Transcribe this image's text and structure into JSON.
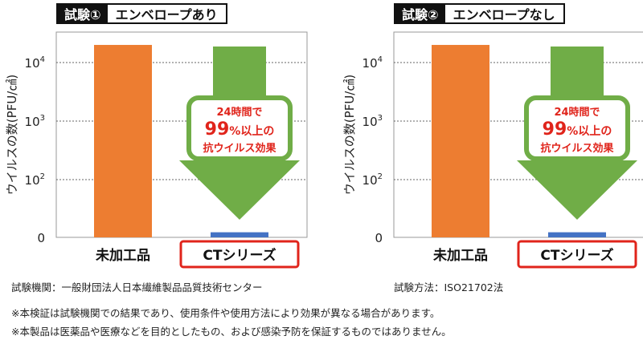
{
  "chart_data": [
    {
      "type": "bar",
      "title_tag": "試験①",
      "title": "エンベロープあり",
      "ylabel": "ウイルスの数(PFU/㎠)",
      "yscale": "log",
      "yticks": [
        "0",
        "10^2",
        "10^3",
        "10^4"
      ],
      "categories": [
        "未加工品",
        "CTシリーズ"
      ],
      "values": [
        20000,
        1.5
      ],
      "highlight_category": "CTシリーズ",
      "annotation": {
        "line1": "24時間で",
        "line2_big": "99",
        "line2_rest": "%以上の",
        "line3": "抗ウイルス効果"
      },
      "grid": true,
      "colors": {
        "bar1": "#ED7D31",
        "bar2": "#4472C4",
        "arrow": "#70AD47",
        "arrow_text": "#E0241B",
        "highlight_border": "#E0241B"
      }
    },
    {
      "type": "bar",
      "title_tag": "試験②",
      "title": "エンベロープなし",
      "ylabel": "ウイルスの数(PFU/㎠)",
      "yscale": "log",
      "yticks": [
        "0",
        "10^2",
        "10^3",
        "10^4"
      ],
      "categories": [
        "未加工品",
        "CTシリーズ"
      ],
      "values": [
        20000,
        1.5
      ],
      "highlight_category": "CTシリーズ",
      "annotation": {
        "line1": "24時間で",
        "line2_big": "99",
        "line2_rest": "%以上の",
        "line3": "抗ウイルス効果"
      },
      "grid": true,
      "colors": {
        "bar1": "#ED7D31",
        "bar2": "#4472C4",
        "arrow": "#70AD47",
        "arrow_text": "#E0241B",
        "highlight_border": "#E0241B"
      }
    }
  ],
  "footnotes": {
    "institution": "試験機関：一般財団法人日本繊維製品品質技術センター",
    "method": "試験方法：ISO21702法",
    "note1": "※本検証は試験機関での結果であり、使用条件や使用方法により効果が異なる場合があります。",
    "note2": "※本製品は医薬品や医療などを目的としたもの、および感染予防を保証するものではありません。"
  }
}
